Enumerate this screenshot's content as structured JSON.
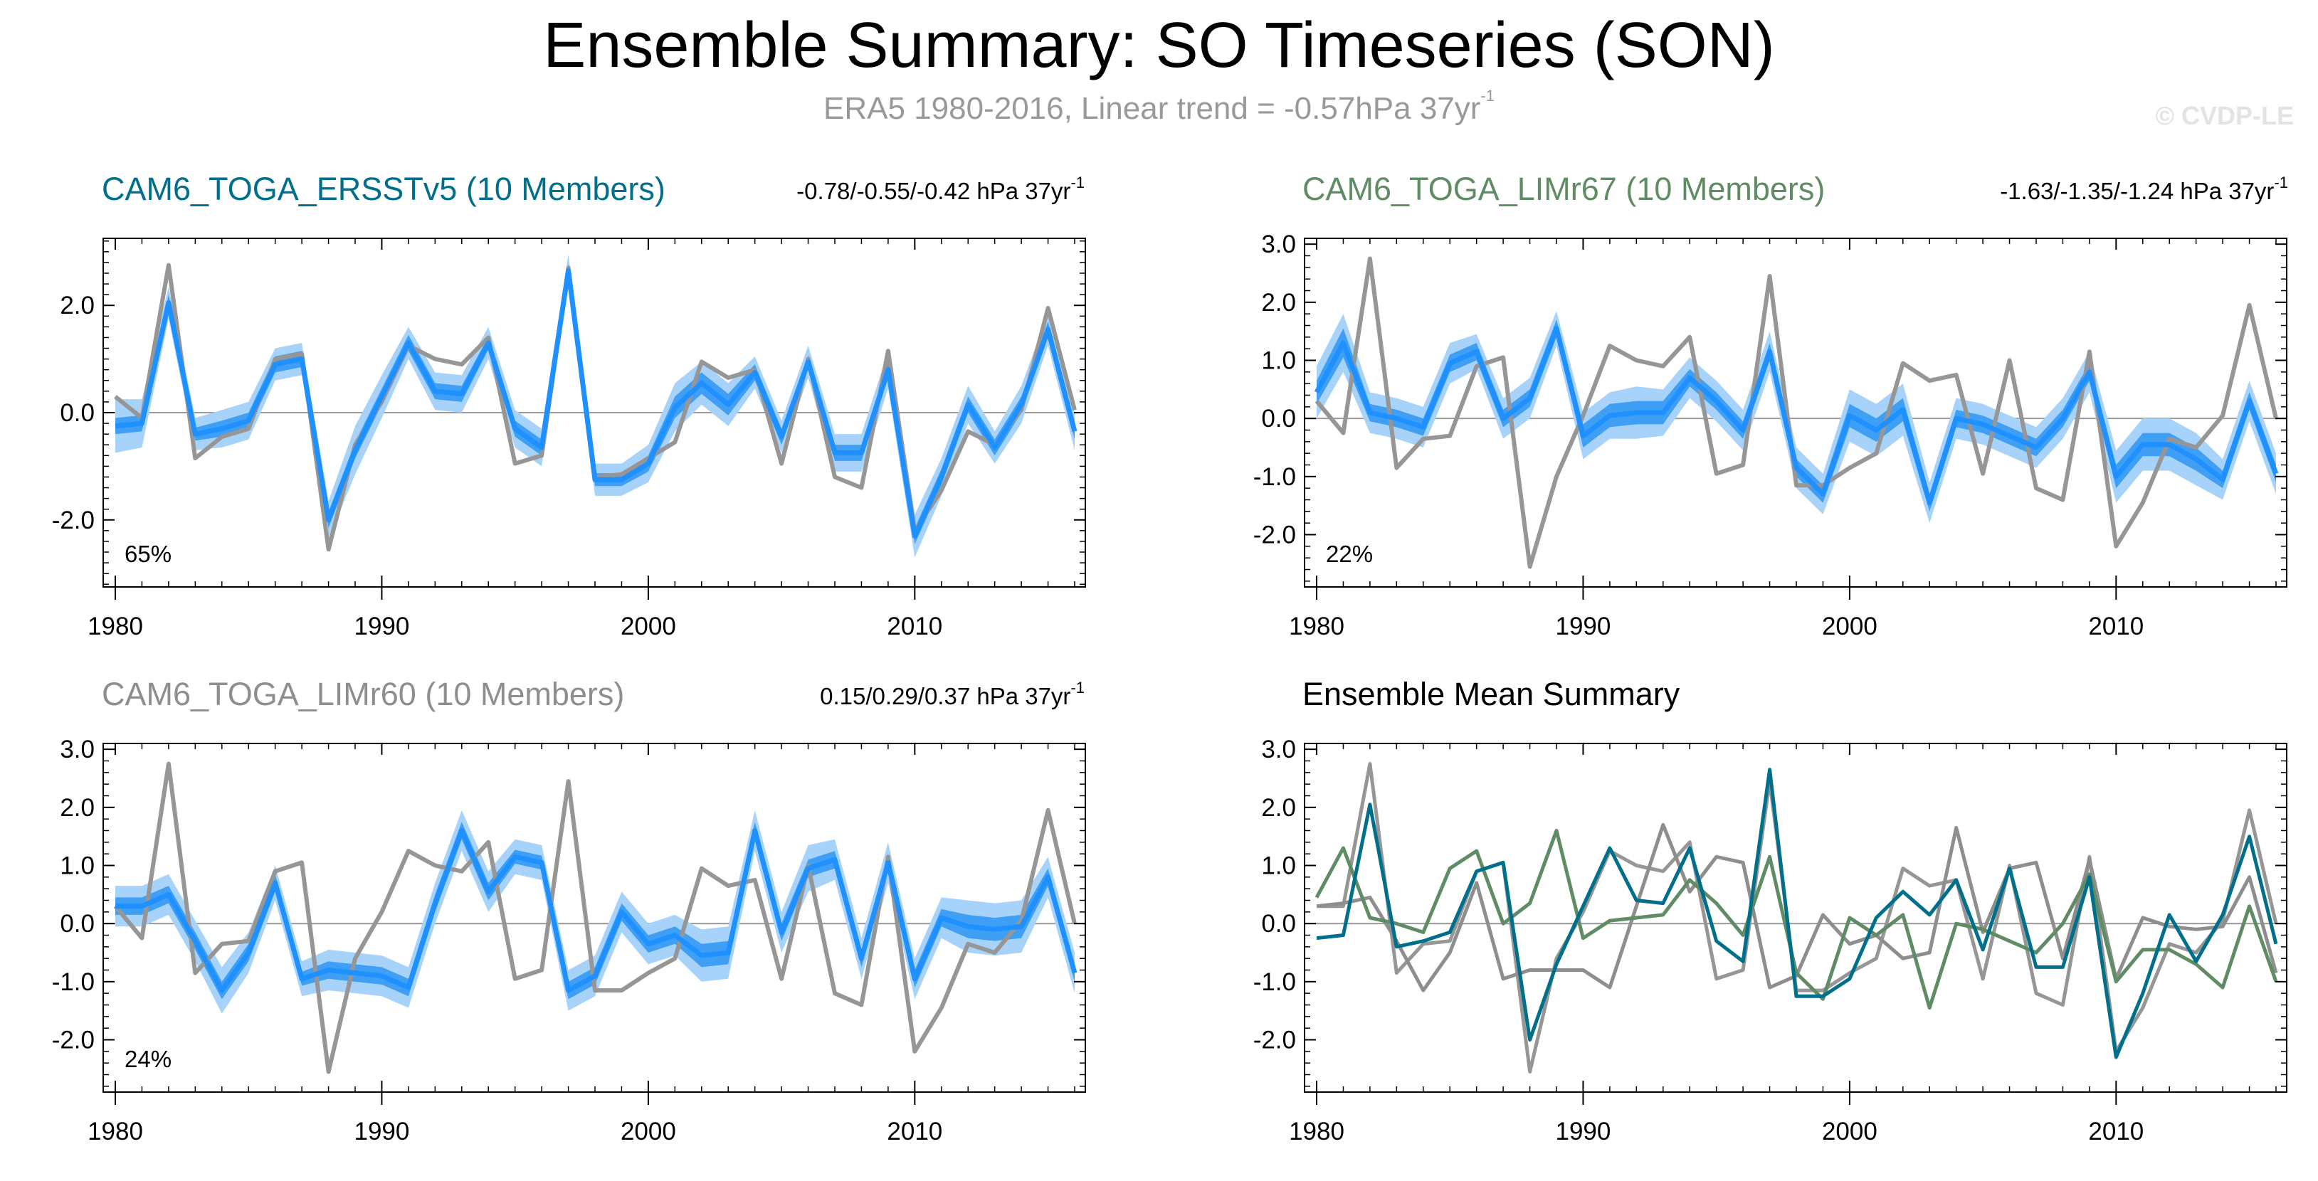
{
  "title": "Ensemble Summary: SO Timeseries (SON)",
  "subtitle": "ERA5 1980-2016, Linear trend = -0.57hPa 37yr",
  "subtitle_sup": "-1",
  "watermark": "© CVDP-LE",
  "colors": {
    "observed": "#969696",
    "ensemble_mean": "#1e90ff",
    "band_inner": "#3f9ff5",
    "band_outer": "#a7d3fb",
    "ersst": "#006f8c",
    "limr67": "#5f8c64",
    "limr60": "#8e8e8e"
  },
  "chart_data": [
    {
      "type": "line",
      "title": "CAM6_TOGA_ERSSTv5 (10 Members)",
      "title_color": "#006f8c",
      "trend_text": "-0.78/-0.55/-0.42 hPa 37yr",
      "trend_sup": "-1",
      "percent_label": "65%",
      "ylim": [
        -3.25,
        3.25
      ],
      "yticks": [
        "2.0",
        "0.0",
        "-2.0"
      ],
      "ytick_values": [
        2,
        0,
        -2
      ],
      "xticks": [
        "1980",
        "1990",
        "2000",
        "2010"
      ],
      "xtick_values": [
        1980,
        1990,
        2000,
        2010
      ],
      "x_start": 1980,
      "observed": [
        0.3,
        -0.1,
        2.75,
        -0.85,
        -0.45,
        -0.3,
        1.0,
        1.1,
        -2.55,
        -0.6,
        0.2,
        1.25,
        1.0,
        0.9,
        1.4,
        -0.95,
        -0.8,
        2.7,
        -1.2,
        -1.15,
        -0.85,
        -0.55,
        0.95,
        0.65,
        0.8,
        -0.95,
        1.0,
        -1.2,
        -1.4,
        1.15,
        -2.2,
        -1.45,
        -0.35,
        -0.6,
        0.05,
        1.95,
        0.05
      ],
      "mean": [
        -0.25,
        -0.2,
        2.05,
        -0.4,
        -0.3,
        -0.15,
        0.9,
        1.0,
        -2.0,
        -0.7,
        0.3,
        1.3,
        0.4,
        0.35,
        1.3,
        -0.3,
        -0.65,
        2.65,
        -1.25,
        -1.25,
        -0.95,
        0.1,
        0.55,
        0.15,
        0.75,
        -0.45,
        0.95,
        -0.75,
        -0.75,
        0.8,
        -2.3,
        -1.2,
        0.15,
        -0.65,
        0.15,
        1.55,
        -0.35
      ],
      "inner": [
        0.15,
        0.15,
        0.15,
        0.12,
        0.15,
        0.15,
        0.15,
        0.15,
        0.15,
        0.15,
        0.15,
        0.15,
        0.15,
        0.15,
        0.12,
        0.15,
        0.15,
        0.12,
        0.12,
        0.12,
        0.15,
        0.2,
        0.2,
        0.2,
        0.15,
        0.15,
        0.12,
        0.15,
        0.15,
        0.15,
        0.15,
        0.15,
        0.15,
        0.15,
        0.15,
        0.15,
        0.15
      ],
      "outer": [
        0.5,
        0.45,
        0.3,
        0.3,
        0.35,
        0.35,
        0.3,
        0.3,
        0.35,
        0.45,
        0.4,
        0.3,
        0.35,
        0.35,
        0.3,
        0.35,
        0.35,
        0.3,
        0.3,
        0.3,
        0.35,
        0.45,
        0.4,
        0.4,
        0.3,
        0.3,
        0.3,
        0.35,
        0.35,
        0.35,
        0.4,
        0.35,
        0.35,
        0.3,
        0.35,
        0.3,
        0.35
      ],
      "observed_color": "#969696"
    },
    {
      "type": "line",
      "title": "CAM6_TOGA_LIMr67 (10 Members)",
      "title_color": "#5f8c64",
      "trend_text": "-1.63/-1.35/-1.24 hPa 37yr",
      "trend_sup": "-1",
      "percent_label": "22%",
      "ylim": [
        -2.9,
        3.1
      ],
      "yticks": [
        "3.0",
        "2.0",
        "1.0",
        "0.0",
        "-1.0",
        "-2.0"
      ],
      "ytick_values": [
        3,
        2,
        1,
        0,
        -1,
        -2
      ],
      "xticks": [
        "1980",
        "1990",
        "2000",
        "2010"
      ],
      "xtick_values": [
        1980,
        1990,
        2000,
        2010
      ],
      "x_start": 1980,
      "observed": [
        0.3,
        -0.25,
        2.75,
        -0.85,
        -0.35,
        -0.3,
        0.9,
        1.05,
        -2.55,
        -1.0,
        0.05,
        1.25,
        1.0,
        0.9,
        1.4,
        -0.95,
        -0.8,
        2.45,
        -1.15,
        -1.15,
        -0.85,
        -0.6,
        0.95,
        0.65,
        0.75,
        -0.95,
        1.0,
        -1.2,
        -1.4,
        1.15,
        -2.2,
        -1.45,
        -0.35,
        -0.5,
        0.05,
        1.95,
        0.0
      ],
      "mean": [
        0.45,
        1.3,
        0.1,
        0.0,
        -0.15,
        0.95,
        1.15,
        0.0,
        0.35,
        1.55,
        -0.3,
        0.05,
        0.1,
        0.1,
        0.7,
        0.3,
        -0.2,
        1.15,
        -0.85,
        -1.3,
        0.05,
        -0.2,
        0.15,
        -1.45,
        0.0,
        -0.1,
        -0.3,
        -0.5,
        0.0,
        0.8,
        -1.0,
        -0.45,
        -0.45,
        -0.7,
        -1.05,
        0.3,
        -0.95
      ],
      "inner": [
        0.2,
        0.25,
        0.15,
        0.15,
        0.15,
        0.15,
        0.15,
        0.15,
        0.15,
        0.15,
        0.2,
        0.2,
        0.2,
        0.2,
        0.15,
        0.15,
        0.15,
        0.15,
        0.15,
        0.15,
        0.2,
        0.2,
        0.2,
        0.15,
        0.15,
        0.15,
        0.15,
        0.15,
        0.15,
        0.15,
        0.2,
        0.2,
        0.2,
        0.2,
        0.15,
        0.15,
        0.15
      ],
      "outer": [
        0.45,
        0.5,
        0.35,
        0.35,
        0.35,
        0.35,
        0.3,
        0.35,
        0.35,
        0.3,
        0.4,
        0.4,
        0.45,
        0.4,
        0.35,
        0.35,
        0.35,
        0.35,
        0.35,
        0.35,
        0.45,
        0.45,
        0.45,
        0.35,
        0.35,
        0.35,
        0.35,
        0.35,
        0.35,
        0.35,
        0.45,
        0.45,
        0.45,
        0.45,
        0.35,
        0.35,
        0.35
      ],
      "observed_color": "#969696"
    },
    {
      "type": "line",
      "title": "CAM6_TOGA_LIMr60 (10 Members)",
      "title_color": "#8e8e8e",
      "trend_text": "0.15/0.29/0.37 hPa 37yr",
      "trend_sup": "-1",
      "percent_label": "24%",
      "ylim": [
        -2.9,
        3.1
      ],
      "yticks": [
        "3.0",
        "2.0",
        "1.0",
        "0.0",
        "-1.0",
        "-2.0"
      ],
      "ytick_values": [
        3,
        2,
        1,
        0,
        -1,
        -2
      ],
      "xticks": [
        "1980",
        "1990",
        "2000",
        "2010"
      ],
      "xtick_values": [
        1980,
        1990,
        2000,
        2010
      ],
      "x_start": 1980,
      "observed": [
        0.3,
        -0.25,
        2.75,
        -0.85,
        -0.35,
        -0.3,
        0.9,
        1.05,
        -2.55,
        -0.6,
        0.2,
        1.25,
        1.0,
        0.9,
        1.4,
        -0.95,
        -0.8,
        2.45,
        -1.15,
        -1.15,
        -0.85,
        -0.6,
        0.95,
        0.65,
        0.75,
        -0.95,
        1.0,
        -1.2,
        -1.4,
        1.15,
        -2.2,
        -1.45,
        -0.35,
        -0.5,
        0.05,
        1.95,
        0.0
      ],
      "mean": [
        0.3,
        0.3,
        0.5,
        -0.3,
        -1.15,
        -0.5,
        0.7,
        -0.95,
        -0.8,
        -0.85,
        -0.9,
        -1.1,
        0.35,
        1.6,
        0.55,
        1.15,
        1.05,
        -1.15,
        -0.9,
        0.2,
        -0.35,
        -0.2,
        -0.55,
        -0.5,
        1.6,
        -0.15,
        0.95,
        1.1,
        -0.6,
        1.05,
        -0.95,
        0.1,
        -0.05,
        -0.1,
        -0.05,
        0.8,
        -0.85
      ],
      "inner": [
        0.15,
        0.15,
        0.15,
        0.15,
        0.15,
        0.15,
        0.15,
        0.12,
        0.15,
        0.15,
        0.15,
        0.15,
        0.15,
        0.15,
        0.15,
        0.12,
        0.12,
        0.15,
        0.15,
        0.15,
        0.15,
        0.15,
        0.2,
        0.2,
        0.15,
        0.15,
        0.15,
        0.15,
        0.15,
        0.15,
        0.15,
        0.15,
        0.2,
        0.2,
        0.2,
        0.15,
        0.15
      ],
      "outer": [
        0.35,
        0.35,
        0.35,
        0.35,
        0.4,
        0.35,
        0.3,
        0.3,
        0.35,
        0.35,
        0.35,
        0.35,
        0.35,
        0.35,
        0.35,
        0.3,
        0.3,
        0.35,
        0.35,
        0.35,
        0.35,
        0.35,
        0.45,
        0.45,
        0.35,
        0.35,
        0.4,
        0.35,
        0.35,
        0.35,
        0.35,
        0.35,
        0.45,
        0.45,
        0.45,
        0.35,
        0.35
      ],
      "observed_color": "#969696"
    },
    {
      "type": "line",
      "title": "Ensemble Mean Summary",
      "title_color": "#000000",
      "ylim": [
        -2.9,
        3.1
      ],
      "yticks": [
        "3.0",
        "2.0",
        "1.0",
        "0.0",
        "-1.0",
        "-2.0"
      ],
      "ytick_values": [
        3,
        2,
        1,
        0,
        -1,
        -2
      ],
      "xticks": [
        "1980",
        "1990",
        "2000",
        "2010"
      ],
      "xtick_values": [
        1980,
        1990,
        2000,
        2010
      ],
      "x_start": 1980,
      "series": [
        {
          "name": "ERA5",
          "color": "#969696",
          "values": [
            0.3,
            0.3,
            2.75,
            -0.85,
            -0.35,
            -0.3,
            0.9,
            1.05,
            -2.55,
            -0.6,
            0.2,
            1.25,
            1.0,
            0.9,
            1.4,
            -0.95,
            -0.8,
            2.45,
            -1.15,
            -1.15,
            -0.85,
            -0.6,
            0.95,
            0.65,
            0.75,
            -0.95,
            1.0,
            -1.2,
            -1.4,
            1.15,
            -2.2,
            -1.45,
            -0.35,
            -0.5,
            0.05,
            1.95,
            0.0
          ]
        },
        {
          "name": "CAM6_TOGA_LIMr60",
          "color": "#8e8e8e",
          "values": [
            0.3,
            0.35,
            0.45,
            -0.3,
            -1.15,
            -0.5,
            0.7,
            -0.95,
            -0.8,
            -0.8,
            -0.8,
            -1.1,
            0.3,
            1.7,
            0.55,
            1.15,
            1.05,
            -1.1,
            -0.9,
            0.15,
            -0.35,
            -0.2,
            -0.6,
            -0.5,
            1.65,
            -0.15,
            0.95,
            1.05,
            -0.6,
            1.1,
            -0.95,
            0.1,
            -0.05,
            -0.1,
            -0.05,
            0.8,
            -0.85
          ]
        },
        {
          "name": "CAM6_TOGA_LIMr67",
          "color": "#5f8c64",
          "values": [
            0.45,
            1.3,
            0.1,
            0.0,
            -0.15,
            0.95,
            1.25,
            0.0,
            0.35,
            1.6,
            -0.25,
            0.05,
            0.1,
            0.15,
            0.75,
            0.35,
            -0.2,
            1.15,
            -0.85,
            -1.3,
            0.1,
            -0.2,
            0.15,
            -1.45,
            0.0,
            -0.1,
            -0.3,
            -0.5,
            0.0,
            0.85,
            -1.0,
            -0.45,
            -0.45,
            -0.7,
            -1.1,
            0.3,
            -1.0
          ]
        },
        {
          "name": "CAM6_TOGA_ERSSTv5",
          "color": "#006f8c",
          "values": [
            -0.25,
            -0.2,
            2.05,
            -0.4,
            -0.3,
            -0.15,
            0.9,
            1.05,
            -2.0,
            -0.7,
            0.3,
            1.3,
            0.4,
            0.35,
            1.3,
            -0.3,
            -0.65,
            2.65,
            -1.25,
            -1.25,
            -0.95,
            0.1,
            0.55,
            0.15,
            0.75,
            -0.45,
            0.95,
            -0.75,
            -0.75,
            0.8,
            -2.3,
            -1.2,
            0.15,
            -0.65,
            0.15,
            1.5,
            -0.35
          ]
        }
      ]
    }
  ]
}
